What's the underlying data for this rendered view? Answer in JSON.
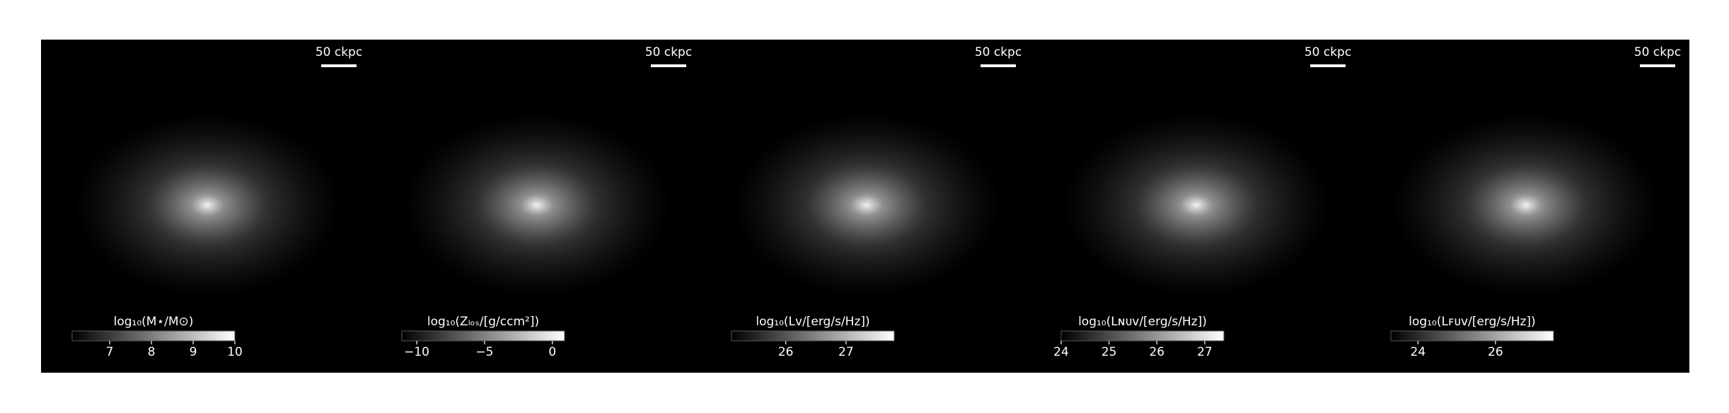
{
  "chart_data": [
    {
      "type": "image",
      "scale_bar": "50 ckpc",
      "colorbar": {
        "label": "log₁₀(M⋆/M⊙)",
        "lim": [
          6.1,
          10
        ],
        "ticks": [
          7,
          8,
          9,
          10
        ]
      }
    },
    {
      "type": "image",
      "scale_bar": "50 ckpc",
      "colorbar": {
        "label": "log₁₀(Zₗₒₛ/[g/ccm²])",
        "lim": [
          -11.1,
          0.9
        ],
        "ticks": [
          {
            "value": -10,
            "label": "−10"
          },
          {
            "value": -5,
            "label": "−5"
          },
          0
        ]
      }
    },
    {
      "type": "image",
      "scale_bar": "50 ckpc",
      "colorbar": {
        "label": "log₁₀(Lᴠ/[erg/s/Hz])",
        "lim": [
          25.1,
          27.8
        ],
        "ticks": [
          26,
          27
        ]
      }
    },
    {
      "type": "image",
      "scale_bar": "50 ckpc",
      "colorbar": {
        "label": "log₁₀(Lɴᴜᴠ/[erg/s/Hz])",
        "lim": [
          24,
          27.4
        ],
        "ticks": [
          24,
          25,
          26,
          27
        ]
      }
    },
    {
      "type": "image",
      "scale_bar": "50 ckpc",
      "colorbar": {
        "label": "log₁₀(Lꜰᴜᴠ/[erg/s/Hz])",
        "lim": [
          23.3,
          27.5
        ],
        "ticks": [
          24,
          26
        ]
      }
    }
  ]
}
